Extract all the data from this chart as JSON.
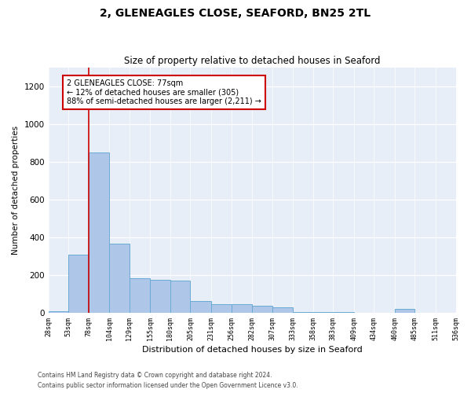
{
  "title": "2, GLENEAGLES CLOSE, SEAFORD, BN25 2TL",
  "subtitle": "Size of property relative to detached houses in Seaford",
  "xlabel": "Distribution of detached houses by size in Seaford",
  "ylabel": "Number of detached properties",
  "bins": [
    28,
    53,
    78,
    104,
    129,
    155,
    180,
    205,
    231,
    256,
    282,
    307,
    333,
    358,
    383,
    409,
    434,
    460,
    485,
    511,
    536
  ],
  "values": [
    10,
    310,
    850,
    365,
    185,
    175,
    170,
    65,
    45,
    45,
    40,
    30,
    5,
    5,
    5,
    0,
    0,
    20,
    0,
    0
  ],
  "bar_color": "#aec6e8",
  "bar_edge_color": "#6aaad4",
  "red_line_x": 78,
  "annotation_text": "2 GLENEAGLES CLOSE: 77sqm\n← 12% of detached houses are smaller (305)\n88% of semi-detached houses are larger (2,211) →",
  "annotation_box_color": "#ffffff",
  "annotation_box_edge": "#cc0000",
  "ylim": [
    0,
    1300
  ],
  "yticks": [
    0,
    200,
    400,
    600,
    800,
    1000,
    1200
  ],
  "background_color": "#e8eef8",
  "footer_line1": "Contains HM Land Registry data © Crown copyright and database right 2024.",
  "footer_line2": "Contains public sector information licensed under the Open Government Licence v3.0."
}
